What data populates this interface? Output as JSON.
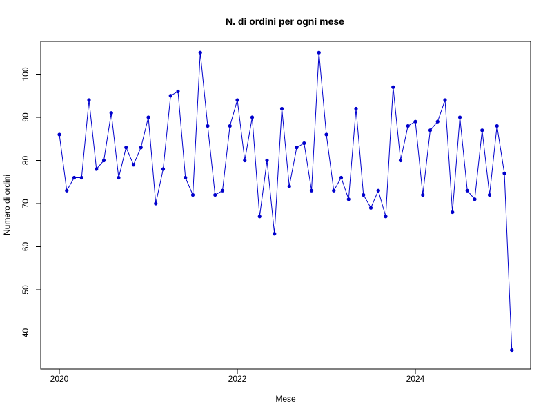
{
  "chart_data": {
    "type": "line",
    "title": "N. di ordini per ogni mese",
    "xlabel": "Mese",
    "ylabel": "Numero di ordini",
    "x_ticks": [
      "2020",
      "2022",
      "2024"
    ],
    "y_ticks": [
      40,
      50,
      60,
      70,
      80,
      90,
      100
    ],
    "ylim": [
      33.1,
      107.9
    ],
    "grid": false,
    "legend": "none",
    "series": [
      {
        "color": "#0000cc",
        "x": [
          "2020-01",
          "2020-02",
          "2020-03",
          "2020-04",
          "2020-05",
          "2020-06",
          "2020-07",
          "2020-08",
          "2020-09",
          "2020-10",
          "2020-11",
          "2020-12",
          "2021-01",
          "2021-02",
          "2021-03",
          "2021-04",
          "2021-05",
          "2021-06",
          "2021-07",
          "2021-08",
          "2021-09",
          "2021-10",
          "2021-11",
          "2021-12",
          "2022-01",
          "2022-02",
          "2022-03",
          "2022-04",
          "2022-05",
          "2022-06",
          "2022-07",
          "2022-08",
          "2022-09",
          "2022-10",
          "2022-11",
          "2022-12",
          "2023-01",
          "2023-02",
          "2023-03",
          "2023-04",
          "2023-05",
          "2023-06",
          "2023-07",
          "2023-08",
          "2023-09",
          "2023-10",
          "2023-11",
          "2023-12",
          "2024-01",
          "2024-02",
          "2024-03",
          "2024-04",
          "2024-05",
          "2024-06",
          "2024-07",
          "2024-08",
          "2024-09",
          "2024-10",
          "2024-11",
          "2024-12",
          "2025-01",
          "2025-02",
          "2025-03"
        ],
        "values": [
          86,
          73,
          76,
          76,
          94,
          78,
          80,
          91,
          76,
          83,
          79,
          83,
          90,
          70,
          78,
          95,
          96,
          76,
          72,
          105,
          88,
          72,
          73,
          88,
          94,
          80,
          90,
          67,
          80,
          63,
          92,
          74,
          83,
          84,
          73,
          105,
          86,
          73,
          76,
          71,
          92,
          72,
          69,
          73,
          67,
          97,
          80,
          88,
          89,
          72,
          87,
          89,
          94,
          68,
          90,
          73,
          71,
          87,
          72,
          88,
          77,
          36,
          null
        ]
      }
    ]
  }
}
